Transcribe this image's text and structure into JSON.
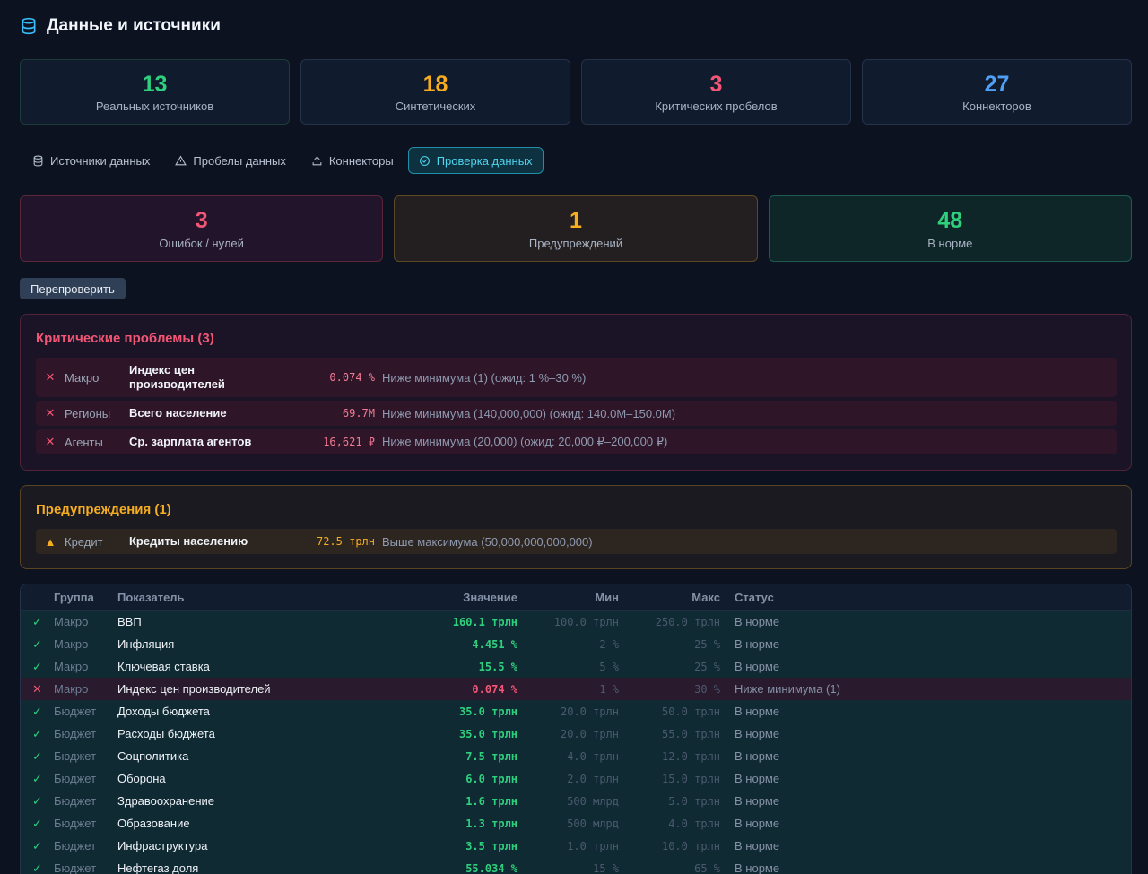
{
  "header": {
    "title": "Данные и источники",
    "icon": "database-icon"
  },
  "stats": [
    {
      "value": "13",
      "label": "Реальных источников",
      "color": "#2fd07d"
    },
    {
      "value": "18",
      "label": "Синтетических",
      "color": "#f6ad20"
    },
    {
      "value": "3",
      "label": "Критических пробелов",
      "color": "#f15675"
    },
    {
      "value": "27",
      "label": "Коннекторов",
      "color": "#4f9ff5"
    }
  ],
  "tabs": [
    {
      "label": "Источники данных",
      "icon": "database-icon"
    },
    {
      "label": "Пробелы данных",
      "icon": "warning-icon"
    },
    {
      "label": "Коннекторы",
      "icon": "upload-icon"
    },
    {
      "label": "Проверка данных",
      "icon": "check-circle-icon",
      "active": true
    }
  ],
  "summary": {
    "errors": {
      "value": "3",
      "label": "Ошибок / нулей",
      "color": "#f15675"
    },
    "warnings": {
      "value": "1",
      "label": "Предупреждений",
      "color": "#f6ad20"
    },
    "ok": {
      "value": "48",
      "label": "В норме",
      "color": "#2fd07d"
    }
  },
  "recheck_label": "Перепроверить",
  "critical": {
    "title": "Критические проблемы (3)",
    "items": [
      {
        "group": "Макро",
        "name": "Индекс цен производителей",
        "value": "0.074 %",
        "message": "Ниже минимума (1) (ожид: 1 %–30 %)"
      },
      {
        "group": "Регионы",
        "name": "Всего население",
        "value": "69.7M",
        "message": "Ниже минимума (140,000,000) (ожид: 140.0M–150.0M)"
      },
      {
        "group": "Агенты",
        "name": "Ср. зарплата агентов",
        "value": "16,621 ₽",
        "message": "Ниже минимума (20,000) (ожид: 20,000 ₽–200,000 ₽)"
      }
    ]
  },
  "warnings": {
    "title": "Предупреждения (1)",
    "items": [
      {
        "group": "Кредит",
        "name": "Кредиты населению",
        "value": "72.5 трлн",
        "message": "Выше максимума (50,000,000,000,000)"
      }
    ]
  },
  "table": {
    "headers": {
      "group": "Группа",
      "name": "Показатель",
      "value": "Значение",
      "min": "Мин",
      "max": "Макс",
      "status": "Статус"
    },
    "rows": [
      {
        "ok": true,
        "group": "Макро",
        "name": "ВВП",
        "value": "160.1 трлн",
        "min": "100.0 трлн",
        "max": "250.0 трлн",
        "status": "В норме"
      },
      {
        "ok": true,
        "group": "Макро",
        "name": "Инфляция",
        "value": "4.451 %",
        "min": "2 %",
        "max": "25 %",
        "status": "В норме"
      },
      {
        "ok": true,
        "group": "Макро",
        "name": "Ключевая ставка",
        "value": "15.5 %",
        "min": "5 %",
        "max": "25 %",
        "status": "В норме"
      },
      {
        "ok": false,
        "group": "Макро",
        "name": "Индекс цен производителей",
        "value": "0.074 %",
        "min": "1 %",
        "max": "30 %",
        "status": "Ниже минимума (1)"
      },
      {
        "ok": true,
        "group": "Бюджет",
        "name": "Доходы бюджета",
        "value": "35.0 трлн",
        "min": "20.0 трлн",
        "max": "50.0 трлн",
        "status": "В норме"
      },
      {
        "ok": true,
        "group": "Бюджет",
        "name": "Расходы бюджета",
        "value": "35.0 трлн",
        "min": "20.0 трлн",
        "max": "55.0 трлн",
        "status": "В норме"
      },
      {
        "ok": true,
        "group": "Бюджет",
        "name": "Соцполитика",
        "value": "7.5 трлн",
        "min": "4.0 трлн",
        "max": "12.0 трлн",
        "status": "В норме"
      },
      {
        "ok": true,
        "group": "Бюджет",
        "name": "Оборона",
        "value": "6.0 трлн",
        "min": "2.0 трлн",
        "max": "15.0 трлн",
        "status": "В норме"
      },
      {
        "ok": true,
        "group": "Бюджет",
        "name": "Здравоохранение",
        "value": "1.6 трлн",
        "min": "500 млрд",
        "max": "5.0 трлн",
        "status": "В норме"
      },
      {
        "ok": true,
        "group": "Бюджет",
        "name": "Образование",
        "value": "1.3 трлн",
        "min": "500 млрд",
        "max": "4.0 трлн",
        "status": "В норме"
      },
      {
        "ok": true,
        "group": "Бюджет",
        "name": "Инфраструктура",
        "value": "3.5 трлн",
        "min": "1.0 трлн",
        "max": "10.0 трлн",
        "status": "В норме"
      },
      {
        "ok": true,
        "group": "Бюджет",
        "name": "Нефтегаз доля",
        "value": "55.034 %",
        "min": "15 %",
        "max": "65 %",
        "status": "В норме"
      }
    ]
  }
}
